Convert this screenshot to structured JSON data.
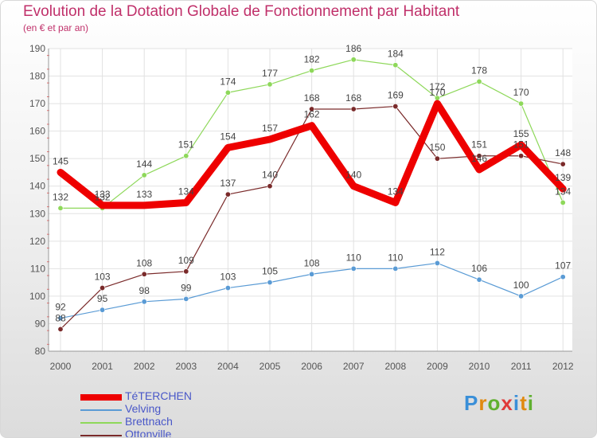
{
  "chart_data": {
    "type": "line",
    "title": "Evolution de la Dotation Globale de Fonctionnement par Habitant",
    "subtitle": "(en € et par an)",
    "xlabel": "",
    "ylabel": "",
    "categories": [
      "2000",
      "2001",
      "2002",
      "2003",
      "2004",
      "2005",
      "2006",
      "2007",
      "2008",
      "2009",
      "2010",
      "2011",
      "2012"
    ],
    "ylim": [
      80,
      190
    ],
    "yticks": [
      80,
      90,
      100,
      110,
      120,
      130,
      140,
      150,
      160,
      170,
      180,
      190
    ],
    "grid": true,
    "series": [
      {
        "name": "TéTERCHEN",
        "color": "#ee0000",
        "values": [
          145,
          133,
          133,
          134,
          154,
          157,
          162,
          140,
          134,
          170,
          146,
          155,
          139
        ]
      },
      {
        "name": "Velving",
        "color": "#5a9bd5",
        "values": [
          92,
          95,
          98,
          99,
          103,
          105,
          108,
          110,
          110,
          112,
          106,
          100,
          107
        ]
      },
      {
        "name": "Brettnach",
        "color": "#8ed85a",
        "values": [
          132,
          132,
          144,
          151,
          174,
          177,
          182,
          186,
          184,
          172,
          178,
          170,
          134
        ]
      },
      {
        "name": "Ottonville",
        "color": "#7a2a2a",
        "values": [
          88,
          103,
          108,
          109,
          137,
          140,
          168,
          168,
          169,
          150,
          151,
          151,
          148
        ]
      }
    ]
  },
  "brand": {
    "letters": [
      {
        "ch": "P",
        "color": "#3a8fd8"
      },
      {
        "ch": "r",
        "color": "#e08a10"
      },
      {
        "ch": "o",
        "color": "#60b030"
      },
      {
        "ch": "x",
        "color": "#e03a3a"
      },
      {
        "ch": "i",
        "color": "#3a8fd8"
      },
      {
        "ch": "t",
        "color": "#e08a10"
      },
      {
        "ch": "i",
        "color": "#60b030"
      }
    ]
  }
}
